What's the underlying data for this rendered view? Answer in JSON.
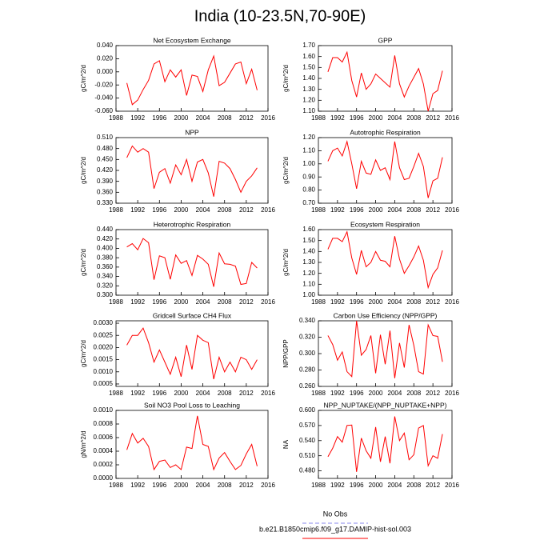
{
  "title": "India (10-23.5N,70-90E)",
  "legend": [
    {
      "name": "No Obs",
      "color": "#8888ee",
      "dash": true
    },
    {
      "name": "b.e21.B1850cmip6.f09_g17.DAMIP-hist-sol.003",
      "color": "#ff0000",
      "dash": false
    }
  ],
  "chart_data": [
    {
      "type": "line",
      "title": "Net Ecosystem Exchange",
      "ylabel": "gC/m^2/d",
      "color": "#ff0000",
      "x": [
        1990,
        1991,
        1992,
        1993,
        1994,
        1995,
        1996,
        1997,
        1998,
        1999,
        2000,
        2001,
        2002,
        2003,
        2004,
        2005,
        2006,
        2007,
        2008,
        2009,
        2010,
        2011,
        2012,
        2013,
        2014
      ],
      "values": [
        -0.017,
        -0.05,
        -0.043,
        -0.027,
        -0.013,
        0.012,
        0.017,
        -0.015,
        0.003,
        -0.008,
        0.003,
        -0.036,
        -0.005,
        -0.007,
        -0.03,
        0.003,
        0.024,
        -0.021,
        -0.016,
        -0.002,
        0.012,
        0.015,
        -0.018,
        0.004,
        -0.028
      ],
      "xlim": [
        1988,
        2016
      ],
      "xticks": [
        1988,
        1992,
        1996,
        2000,
        2004,
        2008,
        2012,
        2016
      ],
      "ylim": [
        -0.06,
        0.04
      ],
      "yticks": [
        {
          "value": -0.06,
          "label": "-0.060"
        },
        {
          "value": -0.04,
          "label": "-0.040"
        },
        {
          "value": -0.02,
          "label": "-0.020"
        },
        {
          "value": 0,
          "label": "0.000"
        },
        {
          "value": 0.02,
          "label": "0.020"
        },
        {
          "value": 0.04,
          "label": "0.040"
        }
      ]
    },
    {
      "type": "line",
      "title": "GPP",
      "ylabel": "gC/m^2/d",
      "color": "#ff0000",
      "x": [
        1990,
        1991,
        1992,
        1993,
        1994,
        1995,
        1996,
        1997,
        1998,
        1999,
        2000,
        2001,
        2002,
        2003,
        2004,
        2005,
        2006,
        2007,
        2008,
        2009,
        2010,
        2011,
        2012,
        2013,
        2014
      ],
      "values": [
        1.46,
        1.59,
        1.59,
        1.55,
        1.64,
        1.38,
        1.23,
        1.45,
        1.3,
        1.35,
        1.44,
        1.4,
        1.36,
        1.32,
        1.61,
        1.35,
        1.23,
        1.33,
        1.41,
        1.49,
        1.35,
        1.1,
        1.26,
        1.29,
        1.47
      ],
      "xlim": [
        1988,
        2016
      ],
      "xticks": [
        1988,
        1992,
        1996,
        2000,
        2004,
        2008,
        2012,
        2016
      ],
      "ylim": [
        1.1,
        1.7
      ],
      "yticks": [
        {
          "value": 1.1,
          "label": "1.10"
        },
        {
          "value": 1.2,
          "label": "1.20"
        },
        {
          "value": 1.3,
          "label": "1.30"
        },
        {
          "value": 1.4,
          "label": "1.40"
        },
        {
          "value": 1.5,
          "label": "1.50"
        },
        {
          "value": 1.6,
          "label": "1.60"
        },
        {
          "value": 1.7,
          "label": "1.70"
        }
      ]
    },
    {
      "type": "line",
      "title": "NPP",
      "ylabel": "gC/m^2/d",
      "color": "#ff0000",
      "x": [
        1990,
        1991,
        1992,
        1993,
        1994,
        1995,
        1996,
        1997,
        1998,
        1999,
        2000,
        2001,
        2002,
        2003,
        2004,
        2005,
        2006,
        2007,
        2008,
        2009,
        2010,
        2011,
        2012,
        2013,
        2014
      ],
      "values": [
        0.455,
        0.487,
        0.47,
        0.48,
        0.47,
        0.37,
        0.415,
        0.425,
        0.385,
        0.435,
        0.408,
        0.45,
        0.39,
        0.443,
        0.45,
        0.413,
        0.348,
        0.445,
        0.44,
        0.425,
        0.395,
        0.36,
        0.39,
        0.405,
        0.427
      ],
      "xlim": [
        1988,
        2016
      ],
      "xticks": [
        1988,
        1992,
        1996,
        2000,
        2004,
        2008,
        2012,
        2016
      ],
      "ylim": [
        0.33,
        0.51
      ],
      "yticks": [
        {
          "value": 0.33,
          "label": "0.330"
        },
        {
          "value": 0.36,
          "label": "0.360"
        },
        {
          "value": 0.39,
          "label": "0.390"
        },
        {
          "value": 0.42,
          "label": "0.420"
        },
        {
          "value": 0.45,
          "label": "0.450"
        },
        {
          "value": 0.48,
          "label": "0.480"
        },
        {
          "value": 0.51,
          "label": "0.510"
        }
      ]
    },
    {
      "type": "line",
      "title": "Autotrophic Respiration",
      "ylabel": "gC/m^2/d",
      "color": "#ff0000",
      "x": [
        1990,
        1991,
        1992,
        1993,
        1994,
        1995,
        1996,
        1997,
        1998,
        1999,
        2000,
        2001,
        2002,
        2003,
        2004,
        2005,
        2006,
        2007,
        2008,
        2009,
        2010,
        2011,
        2012,
        2013,
        2014
      ],
      "values": [
        1.02,
        1.1,
        1.12,
        1.06,
        1.17,
        1.0,
        0.81,
        1.02,
        0.93,
        0.92,
        1.03,
        0.95,
        0.97,
        0.88,
        1.17,
        0.97,
        0.88,
        0.89,
        0.98,
        1.08,
        0.98,
        0.74,
        0.87,
        0.89,
        1.05
      ],
      "xlim": [
        1988,
        2016
      ],
      "xticks": [
        1988,
        1992,
        1996,
        2000,
        2004,
        2008,
        2012,
        2016
      ],
      "ylim": [
        0.7,
        1.2
      ],
      "yticks": [
        {
          "value": 0.7,
          "label": "0.70"
        },
        {
          "value": 0.8,
          "label": "0.80"
        },
        {
          "value": 0.9,
          "label": "0.90"
        },
        {
          "value": 1.0,
          "label": "1.00"
        },
        {
          "value": 1.1,
          "label": "1.10"
        },
        {
          "value": 1.2,
          "label": "1.20"
        }
      ]
    },
    {
      "type": "line",
      "title": "Heterotrophic Respiration",
      "ylabel": "gC/m^2/d",
      "color": "#ff0000",
      "x": [
        1990,
        1991,
        1992,
        1993,
        1994,
        1995,
        1996,
        1997,
        1998,
        1999,
        2000,
        2001,
        2002,
        2003,
        2004,
        2005,
        2006,
        2007,
        2008,
        2009,
        2010,
        2011,
        2012,
        2013,
        2014
      ],
      "values": [
        0.403,
        0.41,
        0.397,
        0.421,
        0.412,
        0.333,
        0.384,
        0.38,
        0.334,
        0.386,
        0.368,
        0.374,
        0.342,
        0.385,
        0.377,
        0.366,
        0.318,
        0.39,
        0.367,
        0.366,
        0.362,
        0.323,
        0.325,
        0.37,
        0.358
      ],
      "xlim": [
        1988,
        2016
      ],
      "xticks": [
        1988,
        1992,
        1996,
        2000,
        2004,
        2008,
        2012,
        2016
      ],
      "ylim": [
        0.3,
        0.44
      ],
      "yticks": [
        {
          "value": 0.3,
          "label": "0.300"
        },
        {
          "value": 0.32,
          "label": "0.320"
        },
        {
          "value": 0.34,
          "label": "0.340"
        },
        {
          "value": 0.36,
          "label": "0.360"
        },
        {
          "value": 0.38,
          "label": "0.380"
        },
        {
          "value": 0.4,
          "label": "0.400"
        },
        {
          "value": 0.42,
          "label": "0.420"
        },
        {
          "value": 0.44,
          "label": "0.440"
        }
      ]
    },
    {
      "type": "line",
      "title": "Ecosystem Respiration",
      "ylabel": "gC/m^2/d",
      "color": "#ff0000",
      "x": [
        1990,
        1991,
        1992,
        1993,
        1994,
        1995,
        1996,
        1997,
        1998,
        1999,
        2000,
        2001,
        2002,
        2003,
        2004,
        2005,
        2006,
        2007,
        2008,
        2009,
        2010,
        2011,
        2012,
        2013,
        2014
      ],
      "values": [
        1.42,
        1.52,
        1.52,
        1.49,
        1.58,
        1.34,
        1.19,
        1.41,
        1.26,
        1.3,
        1.4,
        1.32,
        1.31,
        1.26,
        1.54,
        1.33,
        1.2,
        1.27,
        1.35,
        1.45,
        1.32,
        1.07,
        1.19,
        1.25,
        1.41
      ],
      "xlim": [
        1988,
        2016
      ],
      "xticks": [
        1988,
        1992,
        1996,
        2000,
        2004,
        2008,
        2012,
        2016
      ],
      "ylim": [
        1.0,
        1.6
      ],
      "yticks": [
        {
          "value": 1.0,
          "label": "1.00"
        },
        {
          "value": 1.1,
          "label": "1.10"
        },
        {
          "value": 1.2,
          "label": "1.20"
        },
        {
          "value": 1.3,
          "label": "1.30"
        },
        {
          "value": 1.4,
          "label": "1.40"
        },
        {
          "value": 1.5,
          "label": "1.50"
        },
        {
          "value": 1.6,
          "label": "1.60"
        }
      ]
    },
    {
      "type": "line",
      "title": "Gridcell Surface CH4 Flux",
      "ylabel": "gC/m^2/d",
      "color": "#ff0000",
      "x": [
        1990,
        1991,
        1992,
        1993,
        1994,
        1995,
        1996,
        1997,
        1998,
        1999,
        2000,
        2001,
        2002,
        2003,
        2004,
        2005,
        2006,
        2007,
        2008,
        2009,
        2010,
        2011,
        2012,
        2013,
        2014
      ],
      "values": [
        0.0021,
        0.0025,
        0.0025,
        0.0028,
        0.0022,
        0.0014,
        0.0019,
        0.0014,
        0.0009,
        0.0016,
        0.0008,
        0.0021,
        0.0011,
        0.0025,
        0.0023,
        0.0022,
        0.0007,
        0.0016,
        0.001,
        0.0014,
        0.001,
        0.0016,
        0.0015,
        0.0011,
        0.0015
      ],
      "xlim": [
        1988,
        2016
      ],
      "xticks": [
        1988,
        1992,
        1996,
        2000,
        2004,
        2008,
        2012,
        2016
      ],
      "ylim": [
        0.0004,
        0.0031
      ],
      "yticks": [
        {
          "value": 0.0005,
          "label": "0.0005"
        },
        {
          "value": 0.001,
          "label": "0.0010"
        },
        {
          "value": 0.0015,
          "label": "0.0015"
        },
        {
          "value": 0.002,
          "label": "0.0020"
        },
        {
          "value": 0.0025,
          "label": "0.0025"
        },
        {
          "value": 0.003,
          "label": "0.0030"
        }
      ]
    },
    {
      "type": "line",
      "title": "Carbon Use Efficiency (NPP/GPP)",
      "ylabel": "NPP/GPP",
      "color": "#ff0000",
      "x": [
        1990,
        1991,
        1992,
        1993,
        1994,
        1995,
        1996,
        1997,
        1998,
        1999,
        2000,
        2001,
        2002,
        2003,
        2004,
        2005,
        2006,
        2007,
        2008,
        2009,
        2010,
        2011,
        2012,
        2013,
        2014
      ],
      "values": [
        0.322,
        0.311,
        0.292,
        0.302,
        0.278,
        0.272,
        0.34,
        0.298,
        0.305,
        0.322,
        0.276,
        0.323,
        0.287,
        0.328,
        0.27,
        0.313,
        0.283,
        0.335,
        0.31,
        0.278,
        0.275,
        0.335,
        0.322,
        0.321,
        0.29
      ],
      "xlim": [
        1988,
        2016
      ],
      "xticks": [
        1988,
        1992,
        1996,
        2000,
        2004,
        2008,
        2012,
        2016
      ],
      "ylim": [
        0.26,
        0.34
      ],
      "yticks": [
        {
          "value": 0.26,
          "label": "0.260"
        },
        {
          "value": 0.28,
          "label": "0.280"
        },
        {
          "value": 0.3,
          "label": "0.300"
        },
        {
          "value": 0.32,
          "label": "0.320"
        },
        {
          "value": 0.34,
          "label": "0.340"
        }
      ]
    },
    {
      "type": "line",
      "title": "Soil NO3 Pool Loss to Leaching",
      "ylabel": "gN/m^2/d",
      "color": "#ff0000",
      "x": [
        1990,
        1991,
        1992,
        1993,
        1994,
        1995,
        1996,
        1997,
        1998,
        1999,
        2000,
        2001,
        2002,
        2003,
        2004,
        2005,
        2006,
        2007,
        2008,
        2009,
        2010,
        2011,
        2012,
        2013,
        2014
      ],
      "values": [
        0.00042,
        0.00066,
        0.00052,
        0.00059,
        0.00047,
        0.00013,
        0.00025,
        0.00027,
        0.00016,
        0.0002,
        0.00013,
        0.00046,
        0.00044,
        0.00092,
        0.0005,
        0.00047,
        0.00013,
        0.0003,
        0.00038,
        0.00025,
        0.00013,
        0.00019,
        0.00036,
        0.0005,
        0.00018
      ],
      "xlim": [
        1988,
        2016
      ],
      "xticks": [
        1988,
        1992,
        1996,
        2000,
        2004,
        2008,
        2012,
        2016
      ],
      "ylim": [
        0,
        0.001
      ],
      "yticks": [
        {
          "value": 0,
          "label": "0.0000"
        },
        {
          "value": 0.0002,
          "label": "0.0002"
        },
        {
          "value": 0.0004,
          "label": "0.0004"
        },
        {
          "value": 0.0006,
          "label": "0.0006"
        },
        {
          "value": 0.0008,
          "label": "0.0008"
        },
        {
          "value": 0.001,
          "label": "0.0010"
        }
      ]
    },
    {
      "type": "line",
      "title": "NPP_NUPTAKE/(NPP_NUPTAKE+NPP)",
      "ylabel": "NA",
      "color": "#ff0000",
      "x": [
        1990,
        1991,
        1992,
        1993,
        1994,
        1995,
        1996,
        1997,
        1998,
        1999,
        2000,
        2001,
        2002,
        2003,
        2004,
        2005,
        2006,
        2007,
        2008,
        2009,
        2010,
        2011,
        2012,
        2013,
        2014
      ],
      "values": [
        0.508,
        0.525,
        0.548,
        0.537,
        0.57,
        0.571,
        0.478,
        0.545,
        0.52,
        0.505,
        0.567,
        0.498,
        0.548,
        0.495,
        0.588,
        0.54,
        0.555,
        0.502,
        0.512,
        0.565,
        0.57,
        0.49,
        0.51,
        0.505,
        0.553
      ],
      "xlim": [
        1988,
        2016
      ],
      "xticks": [
        1988,
        1992,
        1996,
        2000,
        2004,
        2008,
        2012,
        2016
      ],
      "ylim": [
        0.465,
        0.6
      ],
      "yticks": [
        {
          "value": 0.48,
          "label": "0.480"
        },
        {
          "value": 0.51,
          "label": "0.510"
        },
        {
          "value": 0.54,
          "label": "0.540"
        },
        {
          "value": 0.57,
          "label": "0.570"
        },
        {
          "value": 0.6,
          "label": "0.600"
        }
      ]
    }
  ]
}
